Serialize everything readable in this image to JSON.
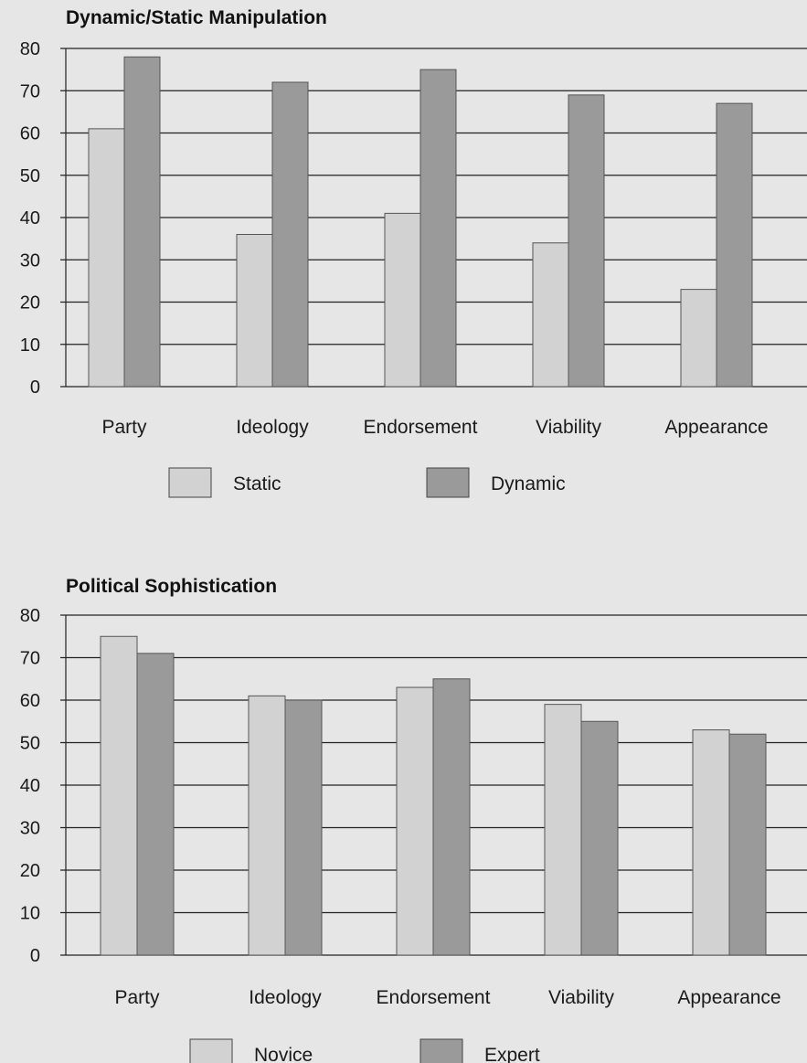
{
  "colors": {
    "background": "#e6e6e6",
    "light_bar": "#d2d2d2",
    "dark_bar": "#9a9a9a",
    "gridline": "#222222"
  },
  "chart_data": [
    {
      "type": "bar",
      "title": "Dynamic/Static Manipulation",
      "categories": [
        "Party",
        "Ideology",
        "Endorsement",
        "Viability",
        "Appearance"
      ],
      "yticks": [
        "0",
        "10",
        "20",
        "30",
        "40",
        "50",
        "60",
        "70",
        "80"
      ],
      "ylim": [
        0,
        80
      ],
      "grid": true,
      "legend_position": "bottom",
      "series": [
        {
          "name": "Static",
          "values": [
            61,
            36,
            41,
            34,
            23
          ],
          "color": "#d2d2d2"
        },
        {
          "name": "Dynamic",
          "values": [
            78,
            72,
            75,
            69,
            67
          ],
          "color": "#9a9a9a"
        }
      ]
    },
    {
      "type": "bar",
      "title": "Political Sophistication",
      "categories": [
        "Party",
        "Ideology",
        "Endorsement",
        "Viability",
        "Appearance"
      ],
      "yticks": [
        "0",
        "10",
        "20",
        "30",
        "40",
        "50",
        "60",
        "70",
        "80"
      ],
      "ylim": [
        0,
        80
      ],
      "grid": true,
      "legend_position": "bottom",
      "series": [
        {
          "name": "Novice",
          "values": [
            75,
            61,
            63,
            59,
            53
          ],
          "color": "#d2d2d2"
        },
        {
          "name": "Expert",
          "values": [
            71,
            60,
            65,
            55,
            52
          ],
          "color": "#9a9a9a"
        }
      ]
    }
  ]
}
